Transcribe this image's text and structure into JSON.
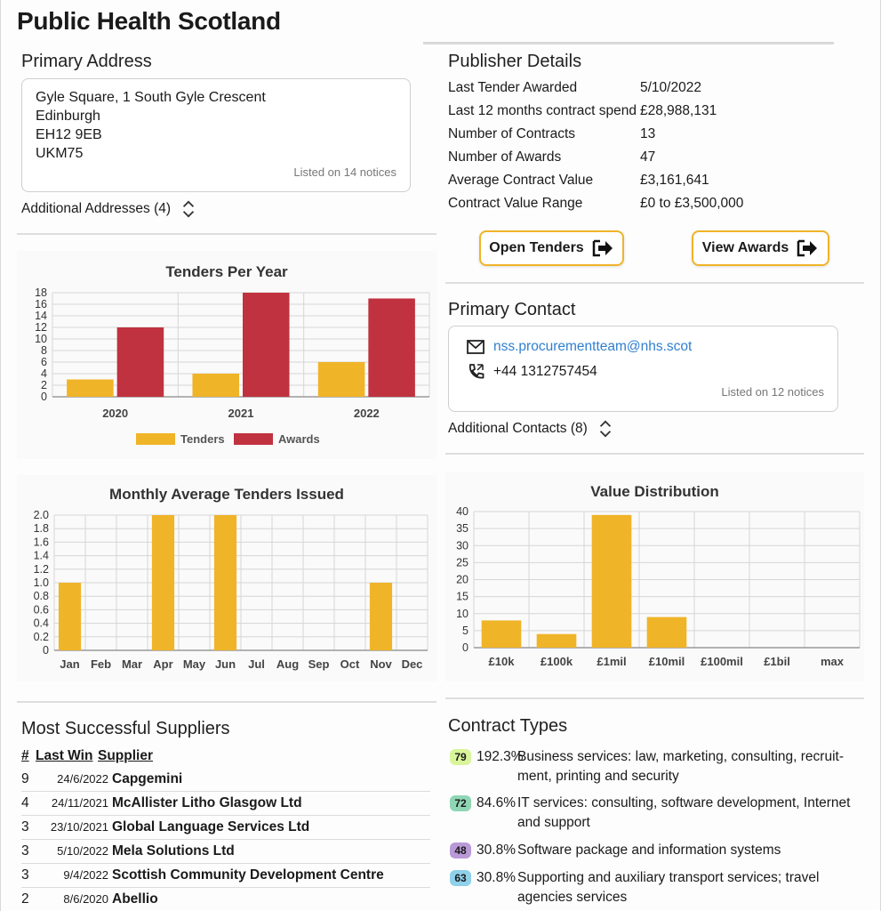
{
  "header": {
    "title": "Public Health Scotland"
  },
  "primary_address": {
    "heading": "Primary Address",
    "lines": [
      "Gyle Square, 1 South Gyle Crescent",
      "Edinburgh",
      "EH12 9EB",
      "UKM75"
    ],
    "listed_on": "Listed on 14 notices",
    "additional": "Additional Addresses (4)"
  },
  "publisher": {
    "heading": "Publisher Details",
    "rows": [
      {
        "label": "Last Tender Awarded",
        "value": "5/10/2022"
      },
      {
        "label": "Last 12 months contract spend",
        "value": "£28,988,131"
      },
      {
        "label": "Number of Contracts",
        "value": "13"
      },
      {
        "label": "Number of Awards",
        "value": "47"
      },
      {
        "label": "Average Contract Value",
        "value": "£3,161,641"
      },
      {
        "label": "Contract Value Range",
        "value": "£0 to £3,500,000"
      }
    ],
    "open_tenders_label": "Open Tenders",
    "view_awards_label": "View Awards"
  },
  "primary_contact": {
    "heading": "Primary Contact",
    "email": "nss.procurementteam@nhs.scot",
    "phone": "+44 1312757454",
    "listed_on": "Listed on 12 notices",
    "additional": "Additional Contacts (8)"
  },
  "chart_data": [
    {
      "type": "bar",
      "title": "Tenders Per Year",
      "categories": [
        "2020",
        "2021",
        "2022"
      ],
      "series": [
        {
          "name": "Tenders",
          "values": [
            3,
            4,
            6
          ],
          "color": "#f0b429"
        },
        {
          "name": "Awards",
          "values": [
            12,
            18,
            17
          ],
          "color": "#c0323f"
        }
      ],
      "ylim": [
        0,
        18
      ],
      "yticks": [
        "0",
        "2",
        "4",
        "6",
        "8",
        "10",
        "12",
        "14",
        "16",
        "18"
      ],
      "grid": true,
      "legend": "bottom"
    },
    {
      "type": "bar",
      "title": "Monthly Average Tenders Issued",
      "categories": [
        "Jan",
        "Feb",
        "Mar",
        "Apr",
        "May",
        "Jun",
        "Jul",
        "Aug",
        "Sep",
        "Oct",
        "Nov",
        "Dec"
      ],
      "series": [
        {
          "values": [
            1,
            0,
            0,
            2,
            0,
            2,
            0,
            0,
            0,
            0,
            1,
            0
          ],
          "color": "#f0b429"
        }
      ],
      "ylim": [
        0,
        2
      ],
      "yticks": [
        "0",
        "0.2",
        "0.4",
        "0.6",
        "0.8",
        "1.0",
        "1.2",
        "1.4",
        "1.6",
        "1.8",
        "2.0"
      ],
      "grid": true
    },
    {
      "type": "bar",
      "title": "Value Distribution",
      "categories": [
        "£10k",
        "£100k",
        "£1mil",
        "£10mil",
        "£100mil",
        "£1bil",
        "max"
      ],
      "series": [
        {
          "values": [
            8,
            4,
            39,
            9,
            0,
            0,
            0
          ],
          "color": "#f0b429"
        }
      ],
      "ylim": [
        0,
        40
      ],
      "yticks": [
        "0",
        "5",
        "10",
        "15",
        "20",
        "25",
        "30",
        "35",
        "40"
      ],
      "grid": true
    }
  ],
  "suppliers": {
    "heading": "Most Successful Suppliers",
    "col_rank": "#",
    "col_last_win": "Last Win",
    "col_supplier": "Supplier",
    "rows": [
      {
        "rank": "9",
        "date": "24/6/2022",
        "name": "Capgemini"
      },
      {
        "rank": "4",
        "date": "24/11/2021",
        "name": "McAllister Litho Glasgow Ltd"
      },
      {
        "rank": "3",
        "date": "23/10/2021",
        "name": "Global Language Services Ltd"
      },
      {
        "rank": "3",
        "date": "5/10/2022",
        "name": "Mela Solutions Ltd"
      },
      {
        "rank": "3",
        "date": "9/4/2022",
        "name": "Scottish Community Development Centre"
      },
      {
        "rank": "2",
        "date": "8/6/2020",
        "name": "Abellio"
      }
    ]
  },
  "contract_types": {
    "heading": "Contract Types",
    "rows": [
      {
        "code": "79",
        "pct": "192.3%",
        "desc": "Business services: law, marketing, consulting, recruit-ment, printing and security",
        "color": "#d8f59a"
      },
      {
        "code": "72",
        "pct": "84.6%",
        "desc": "IT services: consulting, software development, Internet and support",
        "color": "#8fd6b5"
      },
      {
        "code": "48",
        "pct": "30.8%",
        "desc": "Software package and information systems",
        "color": "#b99ad6"
      },
      {
        "code": "63",
        "pct": "30.8%",
        "desc": "Supporting and auxiliary transport services; travel agencies services",
        "color": "#8fd0ea"
      }
    ]
  }
}
